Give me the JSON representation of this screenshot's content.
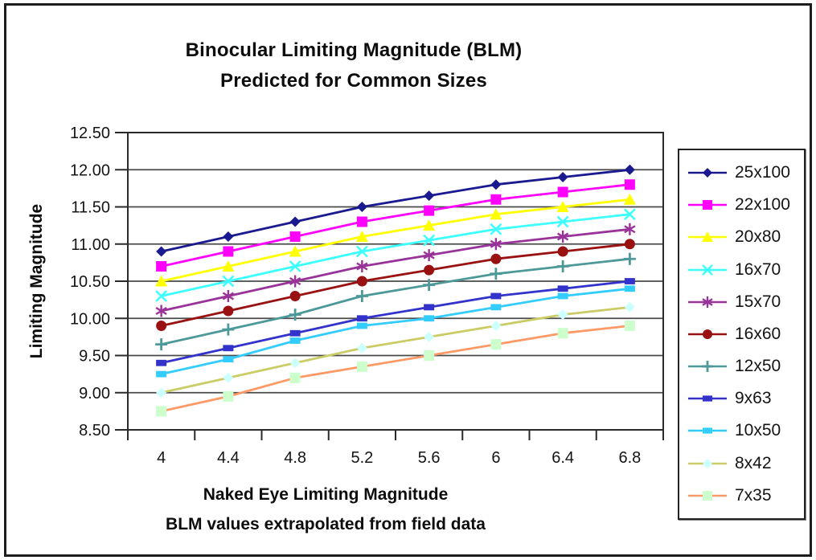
{
  "chart_data": {
    "type": "line",
    "title": "Binocular Limiting Magnitude (BLM)",
    "subtitle": "Predicted for Common Sizes",
    "xlabel": "Naked Eye Limiting Magnitude",
    "xlabel_note": "BLM values extrapolated from field data",
    "ylabel": "Limiting Magnitude",
    "x": [
      4,
      4.4,
      4.8,
      5.2,
      5.6,
      6,
      6.4,
      6.8
    ],
    "x_tick_labels": [
      "4",
      "4.4",
      "4.8",
      "5.2",
      "5.6",
      "6",
      "6.4",
      "6.8"
    ],
    "ylim": [
      8.5,
      12.5
    ],
    "y_tick_step": 0.5,
    "y_tick_labels": [
      "8.50",
      "9.00",
      "9.50",
      "10.00",
      "10.50",
      "11.00",
      "11.50",
      "12.00",
      "12.50"
    ],
    "grid": "horizontal",
    "legend_position": "right",
    "series": [
      {
        "name": "25x100",
        "marker": "diamond",
        "color": "#1a1a90",
        "marker_color": "#1a1a90",
        "values": [
          10.9,
          11.1,
          11.3,
          11.5,
          11.65,
          11.8,
          11.9,
          12.0
        ]
      },
      {
        "name": "22x100",
        "marker": "square",
        "color": "#ff00ff",
        "marker_color": "#ff00ff",
        "values": [
          10.7,
          10.9,
          11.1,
          11.3,
          11.45,
          11.6,
          11.7,
          11.8
        ]
      },
      {
        "name": "20x80",
        "marker": "triangle",
        "color": "#ffff00",
        "marker_color": "#ffff00",
        "values": [
          10.5,
          10.7,
          10.9,
          11.1,
          11.25,
          11.4,
          11.5,
          11.6
        ]
      },
      {
        "name": "16x70",
        "marker": "x",
        "color": "#3dffff",
        "marker_color": "#3dffff",
        "values": [
          10.3,
          10.5,
          10.7,
          10.9,
          11.05,
          11.2,
          11.3,
          11.4
        ]
      },
      {
        "name": "15x70",
        "marker": "asterisk",
        "color": "#993399",
        "marker_color": "#993399",
        "values": [
          10.1,
          10.3,
          10.5,
          10.7,
          10.85,
          11.0,
          11.1,
          11.2
        ]
      },
      {
        "name": "16x60",
        "marker": "circle",
        "color": "#991111",
        "marker_color": "#991111",
        "values": [
          9.9,
          10.1,
          10.3,
          10.5,
          10.65,
          10.8,
          10.9,
          11.0
        ]
      },
      {
        "name": "12x50",
        "marker": "plus",
        "color": "#4d9999",
        "marker_color": "#4d9999",
        "values": [
          9.65,
          9.85,
          10.05,
          10.3,
          10.45,
          10.6,
          10.7,
          10.8
        ]
      },
      {
        "name": "9x63",
        "marker": "dash",
        "color": "#3333cc",
        "marker_color": "#3333cc",
        "values": [
          9.4,
          9.6,
          9.8,
          10.0,
          10.15,
          10.3,
          10.4,
          10.5
        ]
      },
      {
        "name": "10x50",
        "marker": "dash",
        "color": "#33ccff",
        "marker_color": "#33ccff",
        "values": [
          9.25,
          9.45,
          9.7,
          9.9,
          10.0,
          10.15,
          10.3,
          10.4
        ]
      },
      {
        "name": "8x42",
        "marker": "diamond",
        "color": "#cccc66",
        "marker_color": "#ccffff",
        "values": [
          9.0,
          9.2,
          9.4,
          9.6,
          9.75,
          9.9,
          10.05,
          10.15
        ]
      },
      {
        "name": "7x35",
        "marker": "square",
        "color": "#ff9966",
        "marker_color": "#ccffcc",
        "values": [
          8.75,
          8.95,
          9.2,
          9.35,
          9.5,
          9.65,
          9.8,
          9.9
        ]
      }
    ]
  }
}
